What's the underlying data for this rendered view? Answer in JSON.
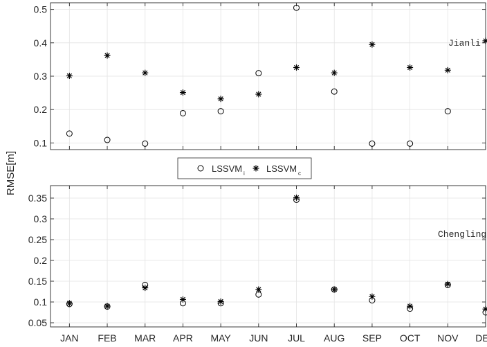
{
  "ylabel": "RMSE[m]",
  "legend": [
    {
      "label": "LSSVM",
      "sub": "i",
      "marker": "circle"
    },
    {
      "label": "LSSVM",
      "sub": "c",
      "marker": "asterisk"
    }
  ],
  "chart_data": [
    {
      "type": "scatter",
      "annotation": "Jianli",
      "categories": [
        "JAN",
        "FEB",
        "MAR",
        "APR",
        "MAY",
        "JUN",
        "JUL",
        "AUG",
        "SEP",
        "OCT",
        "NOV",
        "DEC"
      ],
      "ylim": [
        0.08,
        0.52
      ],
      "yticks": [
        0.1,
        0.2,
        0.3,
        0.4,
        0.5
      ],
      "ytick_labels": [
        "0.1",
        "0.2",
        "0.3",
        "0.4",
        "0.5"
      ],
      "grid": true,
      "series": [
        {
          "name": "LSSVMi",
          "marker": "circle",
          "values": [
            0.128,
            0.109,
            0.098,
            0.189,
            0.195,
            0.309,
            0.505,
            0.254,
            0.098,
            0.098,
            0.195,
            null
          ]
        },
        {
          "name": "LSSVMc",
          "marker": "asterisk",
          "values": [
            0.301,
            0.362,
            0.31,
            0.251,
            0.232,
            0.246,
            0.326,
            0.31,
            0.395,
            0.326,
            0.318,
            0.406
          ]
        }
      ]
    },
    {
      "type": "scatter",
      "annotation": "Chenglingj",
      "categories": [
        "JAN",
        "FEB",
        "MAR",
        "APR",
        "MAY",
        "JUN",
        "JUL",
        "AUG",
        "SEP",
        "OCT",
        "NOV",
        "DEC"
      ],
      "ylim": [
        0.04,
        0.38
      ],
      "yticks": [
        0.05,
        0.1,
        0.15,
        0.2,
        0.25,
        0.3,
        0.35
      ],
      "ytick_labels": [
        "0.05",
        "0.1",
        "0.15",
        "0.2",
        "0.25",
        "0.3",
        "0.35"
      ],
      "grid": true,
      "series": [
        {
          "name": "LSSVMi",
          "marker": "circle",
          "values": [
            0.095,
            0.089,
            0.141,
            0.097,
            0.097,
            0.118,
            0.346,
            0.13,
            0.104,
            0.084,
            0.141,
            0.075
          ]
        },
        {
          "name": "LSSVMc",
          "marker": "asterisk",
          "values": [
            0.097,
            0.09,
            0.134,
            0.106,
            0.101,
            0.13,
            0.351,
            0.13,
            0.113,
            0.09,
            0.143,
            0.083
          ]
        }
      ]
    }
  ]
}
